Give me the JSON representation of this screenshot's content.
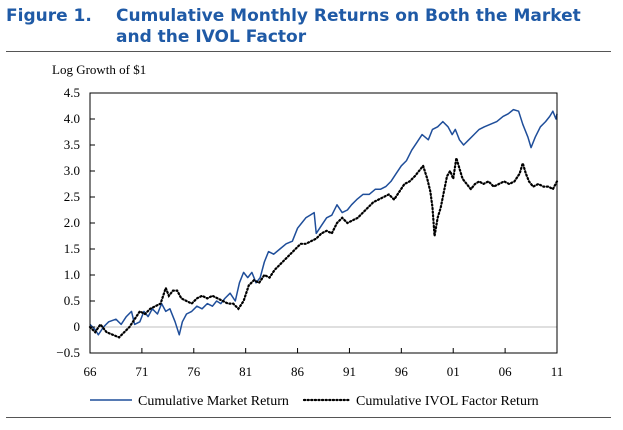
{
  "figure": {
    "label": "Figure 1.",
    "title": "Cumulative Monthly Returns on Both the Market and the IVOL Factor"
  },
  "colors": {
    "title": "#1f5aa6",
    "market_line": "#1f4e9a",
    "ivol_line": "#000000",
    "zero_line": "#bfbfbf"
  },
  "chart_data": {
    "type": "line",
    "title": "Cumulative Monthly Returns on Both the Market and the IVOL Factor",
    "ylabel": "Log Growth of $1",
    "xlabel": "",
    "xlim": [
      1966,
      2011
    ],
    "ylim": [
      -0.5,
      4.5
    ],
    "x_ticks": [
      1966,
      1971,
      1976,
      1981,
      1986,
      1991,
      1996,
      2001,
      2006,
      2011
    ],
    "x_tick_labels": [
      "66",
      "71",
      "76",
      "81",
      "86",
      "91",
      "96",
      "01",
      "06",
      "11"
    ],
    "y_ticks": [
      -0.5,
      0,
      0.5,
      1.0,
      1.5,
      2.0,
      2.5,
      3.0,
      3.5,
      4.0,
      4.5
    ],
    "y_tick_labels": [
      "−0.5",
      "0",
      "0.5",
      "1.0",
      "1.5",
      "2.0",
      "2.5",
      "3.0",
      "3.5",
      "4.0",
      "4.5"
    ],
    "legend_position": "bottom",
    "grid": false,
    "series": [
      {
        "name": "Cumulative Market Return",
        "style": "solid",
        "points": [
          [
            1966.0,
            0.05
          ],
          [
            1966.5,
            -0.05
          ],
          [
            1966.8,
            -0.15
          ],
          [
            1967.3,
            0.0
          ],
          [
            1967.8,
            0.1
          ],
          [
            1968.5,
            0.15
          ],
          [
            1969.0,
            0.05
          ],
          [
            1969.5,
            0.2
          ],
          [
            1970.0,
            0.3
          ],
          [
            1970.3,
            0.05
          ],
          [
            1970.8,
            0.1
          ],
          [
            1971.2,
            0.3
          ],
          [
            1971.6,
            0.2
          ],
          [
            1972.0,
            0.35
          ],
          [
            1972.5,
            0.25
          ],
          [
            1972.9,
            0.45
          ],
          [
            1973.3,
            0.3
          ],
          [
            1973.7,
            0.35
          ],
          [
            1974.2,
            0.1
          ],
          [
            1974.6,
            -0.15
          ],
          [
            1974.9,
            0.1
          ],
          [
            1975.3,
            0.25
          ],
          [
            1975.8,
            0.3
          ],
          [
            1976.3,
            0.4
          ],
          [
            1976.8,
            0.35
          ],
          [
            1977.3,
            0.45
          ],
          [
            1977.8,
            0.4
          ],
          [
            1978.2,
            0.5
          ],
          [
            1978.6,
            0.45
          ],
          [
            1979.0,
            0.55
          ],
          [
            1979.5,
            0.65
          ],
          [
            1980.0,
            0.5
          ],
          [
            1980.4,
            0.85
          ],
          [
            1980.8,
            1.05
          ],
          [
            1981.2,
            0.95
          ],
          [
            1981.6,
            1.05
          ],
          [
            1982.0,
            0.85
          ],
          [
            1982.4,
            0.95
          ],
          [
            1982.8,
            1.25
          ],
          [
            1983.2,
            1.45
          ],
          [
            1983.7,
            1.4
          ],
          [
            1984.3,
            1.5
          ],
          [
            1984.9,
            1.6
          ],
          [
            1985.5,
            1.65
          ],
          [
            1986.0,
            1.9
          ],
          [
            1986.4,
            2.0
          ],
          [
            1986.8,
            2.1
          ],
          [
            1987.2,
            2.15
          ],
          [
            1987.6,
            2.2
          ],
          [
            1987.8,
            1.8
          ],
          [
            1988.3,
            1.95
          ],
          [
            1988.8,
            2.1
          ],
          [
            1989.3,
            2.15
          ],
          [
            1989.8,
            2.35
          ],
          [
            1990.3,
            2.2
          ],
          [
            1990.8,
            2.25
          ],
          [
            1991.2,
            2.35
          ],
          [
            1991.7,
            2.45
          ],
          [
            1992.3,
            2.55
          ],
          [
            1992.9,
            2.55
          ],
          [
            1993.5,
            2.65
          ],
          [
            1994.0,
            2.65
          ],
          [
            1994.5,
            2.7
          ],
          [
            1995.0,
            2.8
          ],
          [
            1995.5,
            2.95
          ],
          [
            1996.0,
            3.1
          ],
          [
            1996.5,
            3.2
          ],
          [
            1997.0,
            3.4
          ],
          [
            1997.5,
            3.55
          ],
          [
            1998.0,
            3.7
          ],
          [
            1998.6,
            3.6
          ],
          [
            1999.0,
            3.8
          ],
          [
            1999.5,
            3.85
          ],
          [
            2000.0,
            3.95
          ],
          [
            2000.5,
            3.85
          ],
          [
            2000.9,
            3.7
          ],
          [
            2001.2,
            3.8
          ],
          [
            2001.6,
            3.6
          ],
          [
            2002.0,
            3.5
          ],
          [
            2002.5,
            3.6
          ],
          [
            2003.0,
            3.7
          ],
          [
            2003.5,
            3.8
          ],
          [
            2004.0,
            3.85
          ],
          [
            2004.6,
            3.9
          ],
          [
            2005.2,
            3.95
          ],
          [
            2005.8,
            4.05
          ],
          [
            2006.3,
            4.1
          ],
          [
            2006.8,
            4.18
          ],
          [
            2007.3,
            4.15
          ],
          [
            2007.7,
            3.9
          ],
          [
            2008.2,
            3.65
          ],
          [
            2008.5,
            3.45
          ],
          [
            2008.9,
            3.65
          ],
          [
            2009.4,
            3.85
          ],
          [
            2009.9,
            3.95
          ],
          [
            2010.3,
            4.05
          ],
          [
            2010.6,
            4.15
          ],
          [
            2010.9,
            4.0
          ],
          [
            2011.0,
            4.1
          ]
        ]
      },
      {
        "name": "Cumulative IVOL Factor Return",
        "style": "dotted",
        "points": [
          [
            1966.0,
            0.0
          ],
          [
            1966.5,
            -0.1
          ],
          [
            1967.0,
            0.05
          ],
          [
            1967.6,
            -0.1
          ],
          [
            1968.2,
            -0.15
          ],
          [
            1968.8,
            -0.2
          ],
          [
            1969.3,
            -0.1
          ],
          [
            1969.8,
            0.0
          ],
          [
            1970.3,
            0.15
          ],
          [
            1970.8,
            0.3
          ],
          [
            1971.3,
            0.25
          ],
          [
            1971.8,
            0.35
          ],
          [
            1972.3,
            0.4
          ],
          [
            1972.8,
            0.45
          ],
          [
            1973.3,
            0.75
          ],
          [
            1973.6,
            0.6
          ],
          [
            1974.0,
            0.7
          ],
          [
            1974.4,
            0.7
          ],
          [
            1974.8,
            0.55
          ],
          [
            1975.3,
            0.5
          ],
          [
            1975.8,
            0.45
          ],
          [
            1976.3,
            0.55
          ],
          [
            1976.8,
            0.6
          ],
          [
            1977.3,
            0.55
          ],
          [
            1977.8,
            0.6
          ],
          [
            1978.3,
            0.55
          ],
          [
            1978.8,
            0.5
          ],
          [
            1979.3,
            0.45
          ],
          [
            1979.8,
            0.45
          ],
          [
            1980.3,
            0.35
          ],
          [
            1980.8,
            0.5
          ],
          [
            1981.3,
            0.8
          ],
          [
            1981.8,
            0.9
          ],
          [
            1982.3,
            0.85
          ],
          [
            1982.8,
            1.0
          ],
          [
            1983.3,
            0.95
          ],
          [
            1983.8,
            1.1
          ],
          [
            1984.3,
            1.2
          ],
          [
            1984.8,
            1.3
          ],
          [
            1985.3,
            1.4
          ],
          [
            1985.8,
            1.5
          ],
          [
            1986.3,
            1.6
          ],
          [
            1986.8,
            1.6
          ],
          [
            1987.3,
            1.65
          ],
          [
            1987.8,
            1.7
          ],
          [
            1988.3,
            1.8
          ],
          [
            1988.8,
            1.85
          ],
          [
            1989.3,
            1.8
          ],
          [
            1989.8,
            2.0
          ],
          [
            1990.3,
            2.1
          ],
          [
            1990.8,
            2.0
          ],
          [
            1991.3,
            2.05
          ],
          [
            1991.8,
            2.1
          ],
          [
            1992.3,
            2.2
          ],
          [
            1992.8,
            2.3
          ],
          [
            1993.3,
            2.4
          ],
          [
            1993.8,
            2.45
          ],
          [
            1994.3,
            2.5
          ],
          [
            1994.8,
            2.55
          ],
          [
            1995.3,
            2.45
          ],
          [
            1995.8,
            2.6
          ],
          [
            1996.3,
            2.75
          ],
          [
            1996.8,
            2.8
          ],
          [
            1997.3,
            2.9
          ],
          [
            1997.7,
            3.0
          ],
          [
            1998.1,
            3.1
          ],
          [
            1998.5,
            2.85
          ],
          [
            1998.8,
            2.6
          ],
          [
            1999.0,
            2.3
          ],
          [
            1999.2,
            1.75
          ],
          [
            1999.5,
            2.1
          ],
          [
            1999.8,
            2.3
          ],
          [
            2000.1,
            2.6
          ],
          [
            2000.4,
            2.9
          ],
          [
            2000.7,
            3.0
          ],
          [
            2001.0,
            2.85
          ],
          [
            2001.3,
            3.25
          ],
          [
            2001.6,
            3.05
          ],
          [
            2001.9,
            2.85
          ],
          [
            2002.3,
            2.75
          ],
          [
            2002.7,
            2.65
          ],
          [
            2003.1,
            2.75
          ],
          [
            2003.5,
            2.8
          ],
          [
            2003.9,
            2.75
          ],
          [
            2004.4,
            2.8
          ],
          [
            2004.9,
            2.7
          ],
          [
            2005.4,
            2.75
          ],
          [
            2005.9,
            2.8
          ],
          [
            2006.4,
            2.75
          ],
          [
            2006.9,
            2.8
          ],
          [
            2007.4,
            2.95
          ],
          [
            2007.7,
            3.15
          ],
          [
            2008.0,
            2.95
          ],
          [
            2008.3,
            2.8
          ],
          [
            2008.7,
            2.7
          ],
          [
            2009.2,
            2.75
          ],
          [
            2009.7,
            2.7
          ],
          [
            2010.2,
            2.7
          ],
          [
            2010.6,
            2.65
          ],
          [
            2011.0,
            2.8
          ]
        ]
      }
    ]
  }
}
